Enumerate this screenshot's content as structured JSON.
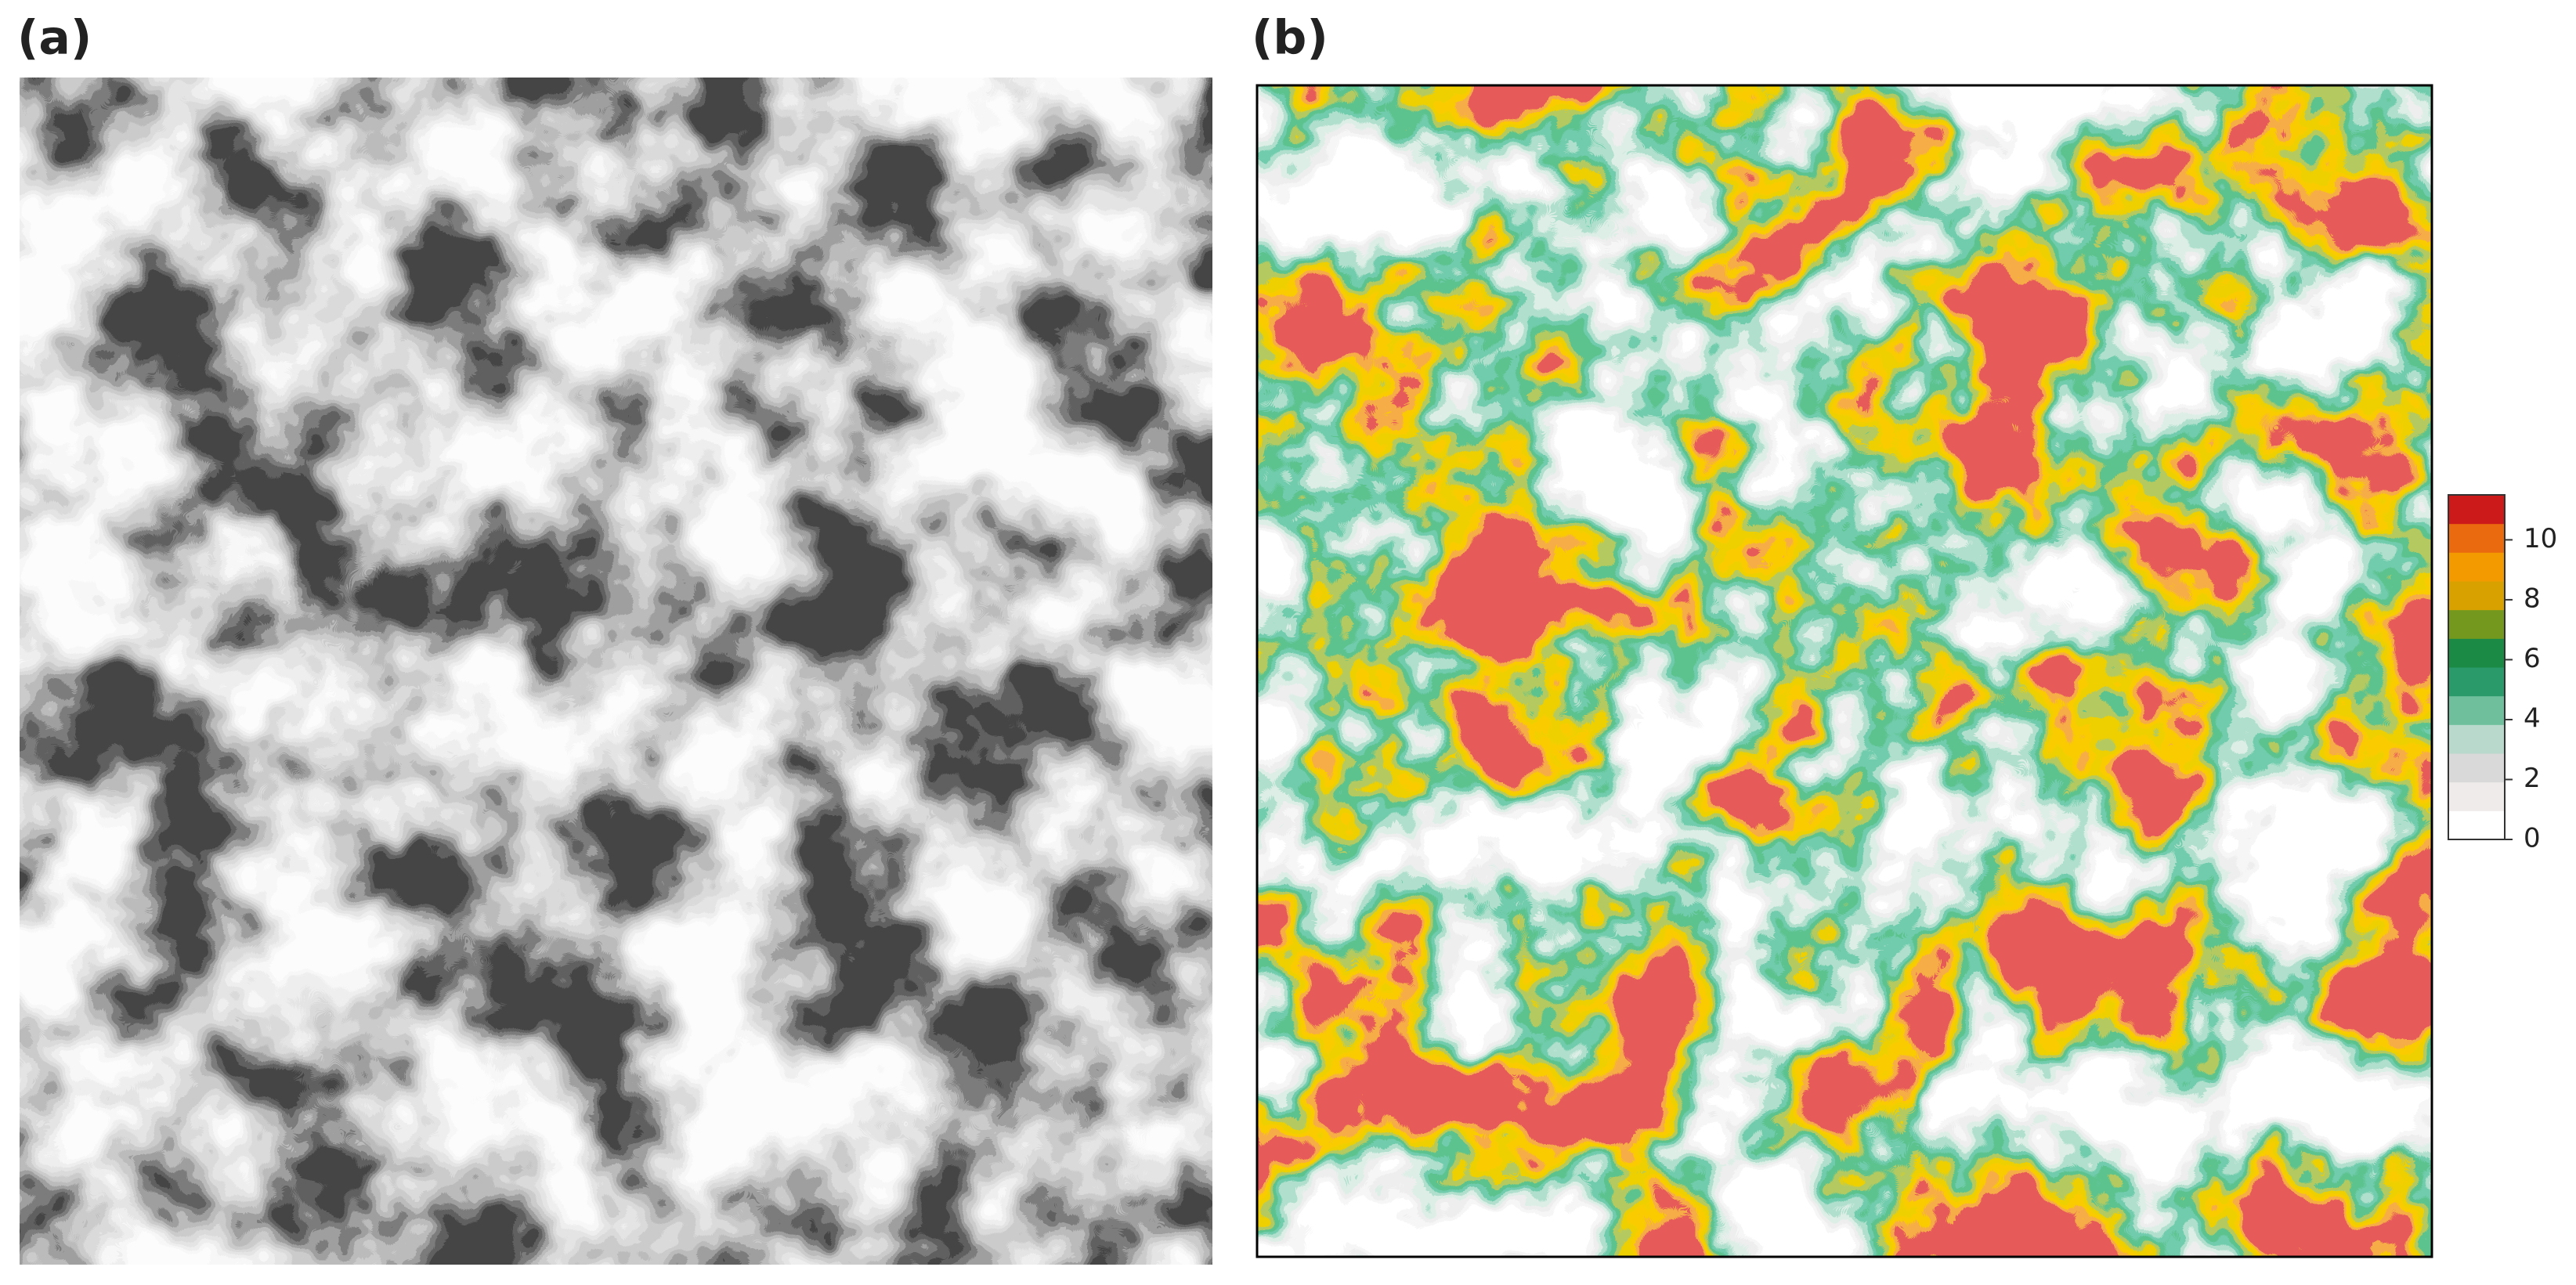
{
  "chart_data": [
    {
      "type": "image",
      "panel_label": "(a)"
    },
    {
      "type": "raster",
      "panel_label": "(b)",
      "colorbar": {
        "clim": [
          0,
          11.5
        ],
        "ticks": [
          0,
          2,
          4,
          6,
          8,
          10
        ],
        "colors": [
          "#ffffff",
          "#efebeb",
          "#d9d9d9",
          "#b9d9cc",
          "#6fbf9c",
          "#2a9a6a",
          "#1b8a45",
          "#74981e",
          "#d9a100",
          "#f39a00",
          "#ea6a10",
          "#cc1a1a"
        ]
      }
    }
  ]
}
